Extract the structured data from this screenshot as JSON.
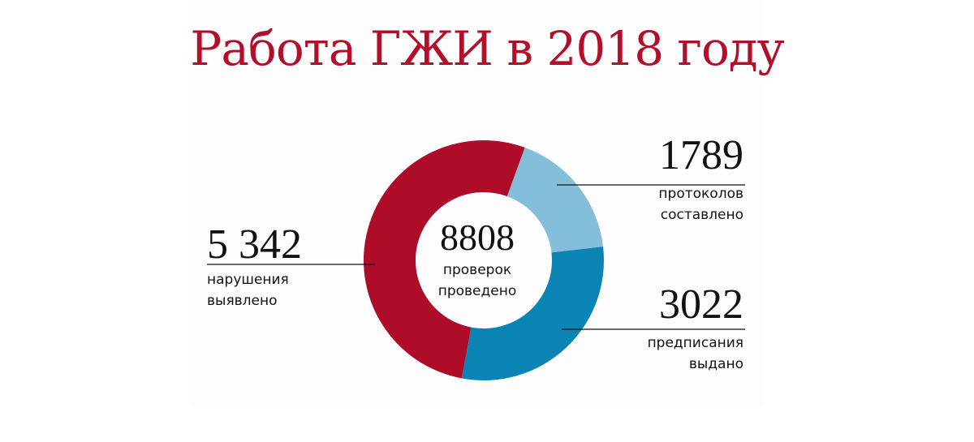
{
  "title": "Работа ГЖИ в 2018 году",
  "center": {
    "value": "8808",
    "line1": "проверок",
    "line2": "проведено"
  },
  "labels": {
    "violations": {
      "value": "5 342",
      "line1": "нарушения",
      "line2": "выявлено"
    },
    "protocols": {
      "value": "1789",
      "line1": "протоколов",
      "line2": "составлено"
    },
    "orders": {
      "value": "3022",
      "line1": "предписания",
      "line2": "выдано"
    }
  },
  "chart_data": {
    "type": "pie",
    "style": "donut",
    "total": 8808,
    "slices": [
      {
        "label": "протоколов составлено",
        "value": 1789,
        "color": "#85bedb"
      },
      {
        "label": "предписания выдано",
        "value": 3022,
        "color": "#0a84b5"
      },
      {
        "label": "нарушения выявлено",
        "value": 5342,
        "color": "#ae0c29"
      }
    ]
  }
}
